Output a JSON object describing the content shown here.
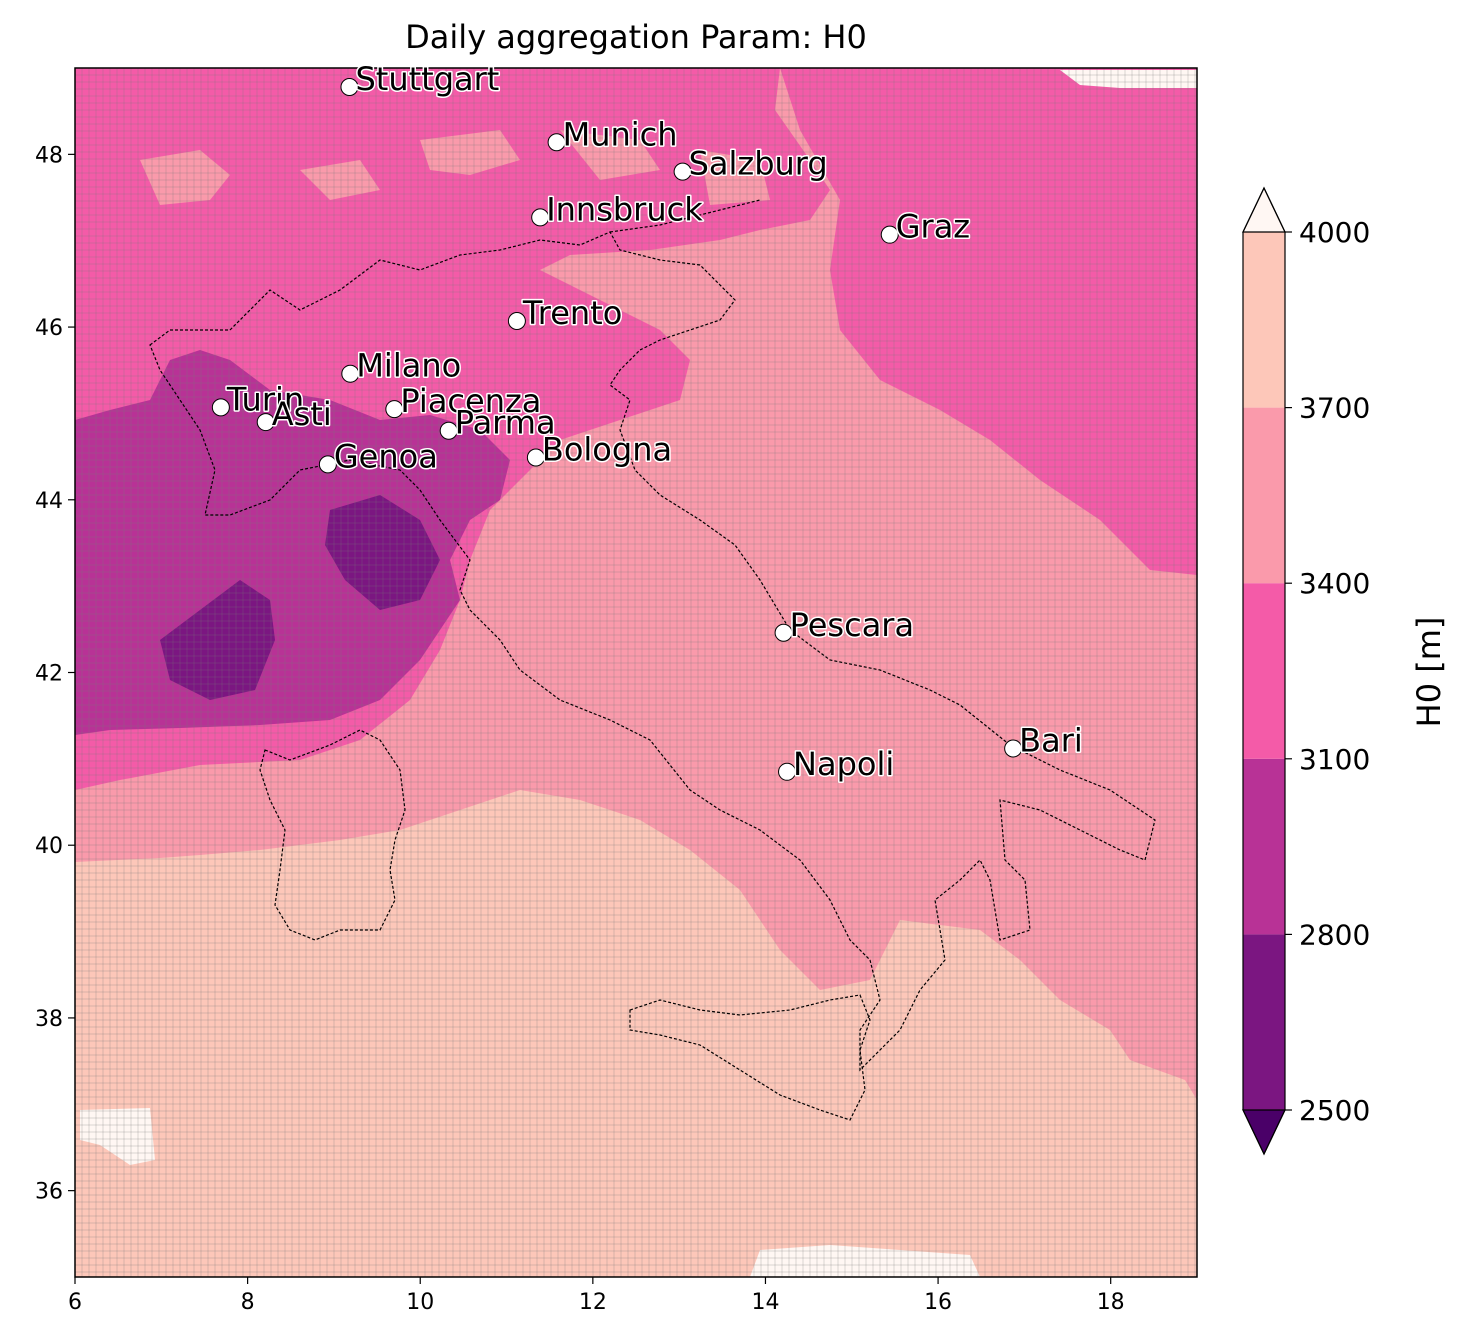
{
  "title": "Daily aggregation Param: H0",
  "map": {
    "lon_range": [
      6,
      19
    ],
    "lat_range": [
      35,
      49
    ],
    "x_ticks": [
      "6",
      "8",
      "10",
      "12",
      "14",
      "16",
      "18"
    ],
    "y_ticks": [
      "36",
      "38",
      "40",
      "42",
      "44",
      "46",
      "48"
    ],
    "grid": true
  },
  "colorbar": {
    "label": "H0  [m]",
    "levels": [
      "2500",
      "2800",
      "3100",
      "3400",
      "3700",
      "4000"
    ],
    "colors": [
      "#7b1681",
      "#b83296",
      "#f45ba8",
      "#fa9aab",
      "#fdc7b9"
    ],
    "under_color": "#4a0068",
    "over_color": "#fff7f3",
    "extend": "both"
  },
  "cities": [
    {
      "name": "Stuttgart",
      "lon": 9.18,
      "lat": 48.78
    },
    {
      "name": "Munich",
      "lon": 11.58,
      "lat": 48.14
    },
    {
      "name": "Salzburg",
      "lon": 13.04,
      "lat": 47.8
    },
    {
      "name": "Innsbruck",
      "lon": 11.39,
      "lat": 47.27
    },
    {
      "name": "Graz",
      "lon": 15.44,
      "lat": 47.07
    },
    {
      "name": "Trento",
      "lon": 11.12,
      "lat": 46.07
    },
    {
      "name": "Milano",
      "lon": 9.19,
      "lat": 45.46
    },
    {
      "name": "Turin",
      "lon": 7.69,
      "lat": 45.07
    },
    {
      "name": "Asti",
      "lon": 8.21,
      "lat": 44.9
    },
    {
      "name": "Piacenza",
      "lon": 9.7,
      "lat": 45.05
    },
    {
      "name": "Parma",
      "lon": 10.33,
      "lat": 44.8
    },
    {
      "name": "Genoa",
      "lon": 8.93,
      "lat": 44.41
    },
    {
      "name": "Bologna",
      "lon": 11.34,
      "lat": 44.49
    },
    {
      "name": "Pescara",
      "lon": 14.21,
      "lat": 42.46
    },
    {
      "name": "Bari",
      "lon": 16.87,
      "lat": 41.12
    },
    {
      "name": "Napoli",
      "lon": 14.25,
      "lat": 40.85
    }
  ]
}
